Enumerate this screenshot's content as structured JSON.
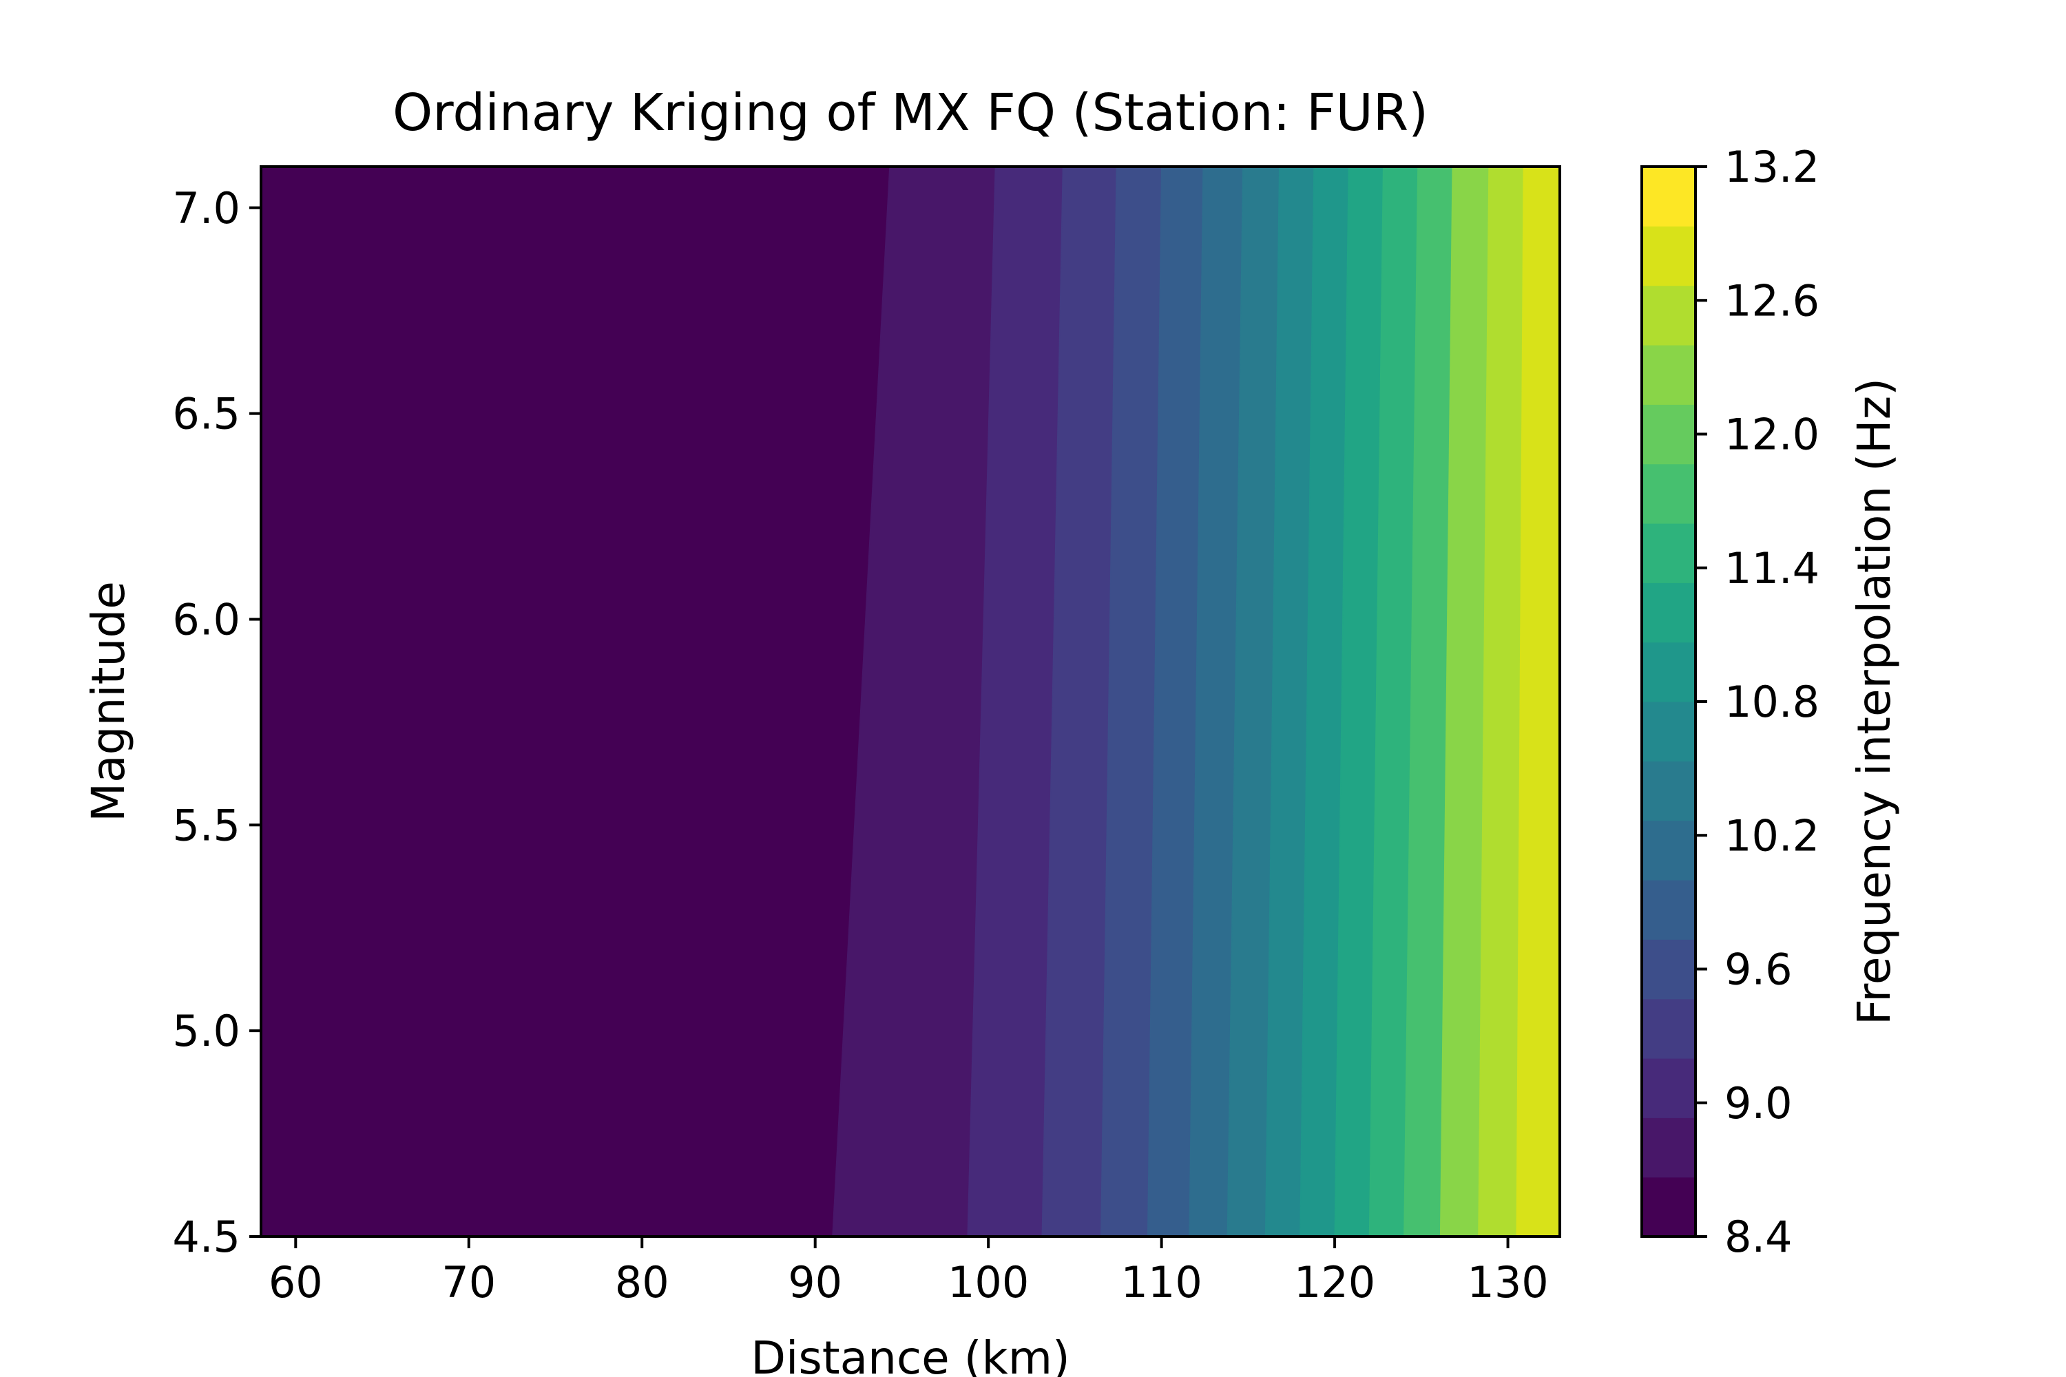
{
  "chart_data": {
    "type": "contour",
    "title": "Ordinary Kriging of MX FQ (Station: FUR)",
    "xlabel": "Distance (km)",
    "ylabel": "Magnitude",
    "xlim": [
      58,
      133
    ],
    "ylim": [
      4.5,
      7.1
    ],
    "xticks": [
      60,
      70,
      80,
      90,
      100,
      110,
      120,
      130
    ],
    "xtick_labels": [
      "60",
      "70",
      "80",
      "90",
      "100",
      "110",
      "120",
      "130"
    ],
    "yticks": [
      4.5,
      5.0,
      5.5,
      6.0,
      6.5,
      7.0
    ],
    "ytick_labels": [
      "4.5",
      "5.0",
      "5.5",
      "6.0",
      "6.5",
      "7.0"
    ],
    "colorbar": {
      "label": "Frequency interpolation (Hz)",
      "range": [
        8.4,
        13.2
      ],
      "ticks": [
        8.4,
        9.0,
        9.6,
        10.2,
        10.8,
        11.4,
        12.0,
        12.6,
        13.2
      ],
      "tick_labels": [
        "8.4",
        "9.0",
        "9.6",
        "10.2",
        "10.8",
        "11.4",
        "12.0",
        "12.6",
        "13.2"
      ],
      "colors": [
        "#440154",
        "#481769",
        "#472a7a",
        "#433d84",
        "#3d4e8a",
        "#355e8d",
        "#2e6d8e",
        "#297b8e",
        "#23898e",
        "#1f978b",
        "#21a585",
        "#2eb37c",
        "#46c06f",
        "#65cb5e",
        "#89d548",
        "#b0dd2f",
        "#d8e219",
        "#fde725"
      ]
    },
    "contour_levels": [
      8.4,
      8.7,
      9.0,
      9.3,
      9.6,
      9.9,
      10.2,
      10.5,
      10.8,
      11.1,
      11.4,
      11.7,
      12.0,
      12.3,
      12.6,
      12.9,
      13.2
    ],
    "band_boundaries": [
      {
        "level": 8.7,
        "x_at_ymin": 91.0,
        "x_at_ymax": 94.3
      },
      {
        "level": 9.0,
        "x_at_ymin": 98.8,
        "x_at_ymax": 100.4
      },
      {
        "level": 9.3,
        "x_at_ymin": 103.1,
        "x_at_ymax": 104.3
      },
      {
        "level": 9.6,
        "x_at_ymin": 106.5,
        "x_at_ymax": 107.4
      },
      {
        "level": 9.9,
        "x_at_ymin": 109.2,
        "x_at_ymax": 110.0
      },
      {
        "level": 10.2,
        "x_at_ymin": 111.6,
        "x_at_ymax": 112.4
      },
      {
        "level": 10.5,
        "x_at_ymin": 113.8,
        "x_at_ymax": 114.7
      },
      {
        "level": 10.8,
        "x_at_ymin": 116.0,
        "x_at_ymax": 116.8
      },
      {
        "level": 11.1,
        "x_at_ymin": 118.0,
        "x_at_ymax": 118.8
      },
      {
        "level": 11.4,
        "x_at_ymin": 120.0,
        "x_at_ymax": 120.8
      },
      {
        "level": 11.7,
        "x_at_ymin": 122.0,
        "x_at_ymax": 122.8
      },
      {
        "level": 12.0,
        "x_at_ymin": 124.0,
        "x_at_ymax": 124.8
      },
      {
        "level": 12.3,
        "x_at_ymin": 126.1,
        "x_at_ymax": 126.8
      },
      {
        "level": 12.6,
        "x_at_ymin": 128.3,
        "x_at_ymax": 128.9
      },
      {
        "level": 12.9,
        "x_at_ymin": 130.5,
        "x_at_ymax": 130.9
      }
    ],
    "band_color_indices": [
      0,
      1,
      2,
      3,
      4,
      5,
      6,
      7,
      8,
      9,
      10,
      11,
      12,
      14,
      15,
      16
    ],
    "grid": false
  }
}
